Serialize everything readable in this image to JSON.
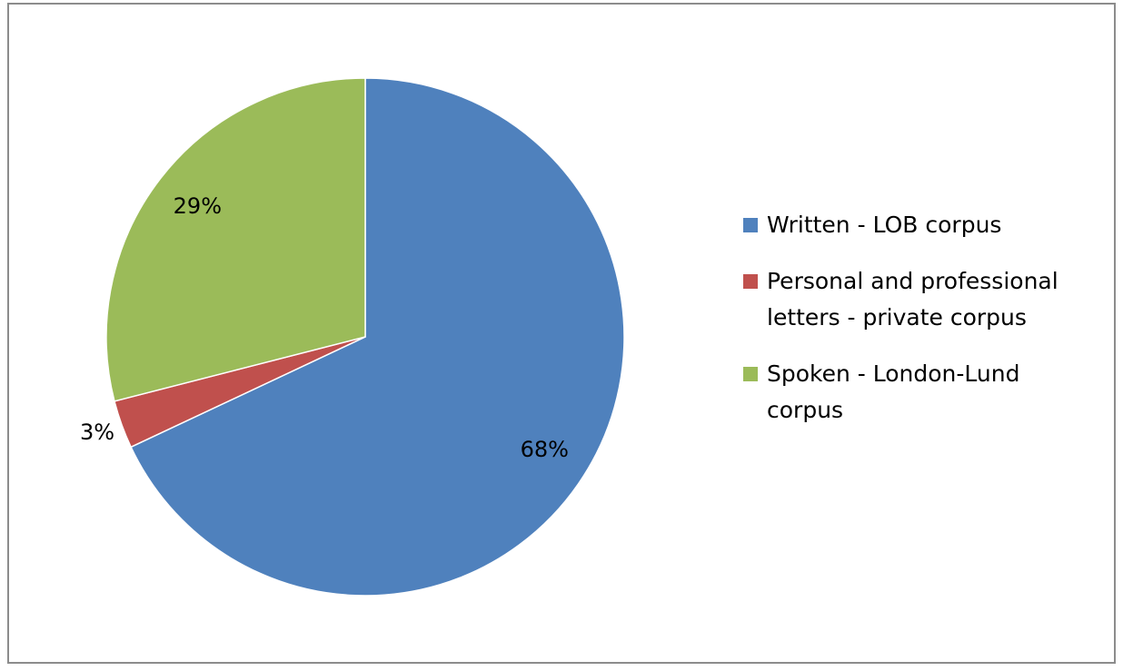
{
  "chart_data": {
    "type": "pie",
    "categories": [
      "Written - LOB corpus",
      "Personal and professional letters - private corpus",
      "Spoken - London-Lund corpus"
    ],
    "values": [
      68,
      3,
      29
    ],
    "value_labels": [
      "68%",
      "3%",
      "29%"
    ],
    "colors": [
      "#4f81bd",
      "#c0504d",
      "#9bbb59"
    ],
    "legend": "right"
  }
}
